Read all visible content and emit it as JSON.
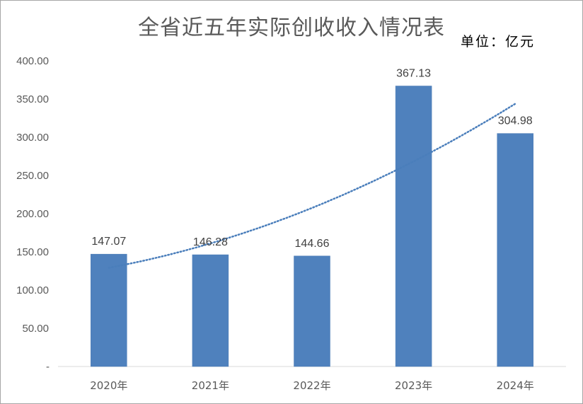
{
  "chart_data": {
    "type": "bar",
    "title": "全省近五年实际创收收入情况表",
    "unit_label": "单位：亿元",
    "categories": [
      "2020年",
      "2021年",
      "2022年",
      "2023年",
      "2024年"
    ],
    "values": [
      147.07,
      146.28,
      144.66,
      367.13,
      304.98
    ],
    "value_labels": [
      "147.07",
      "146.28",
      "144.66",
      "367.13",
      "304.98"
    ],
    "ylim": [
      0,
      400
    ],
    "yticks": [
      0,
      50,
      100,
      150,
      200,
      250,
      300,
      350,
      400
    ],
    "ytick_labels": [
      "-",
      "50.00",
      "100.00",
      "150.00",
      "200.00",
      "250.00",
      "300.00",
      "350.00",
      "400.00"
    ],
    "trendline": {
      "type": "polynomial",
      "style": "dotted"
    },
    "grid": false,
    "legend": "none",
    "colors": {
      "bar": "#4f81bd",
      "trend": "#4a7ebb",
      "axis": "#d9d9d9",
      "text": "#595959"
    }
  }
}
